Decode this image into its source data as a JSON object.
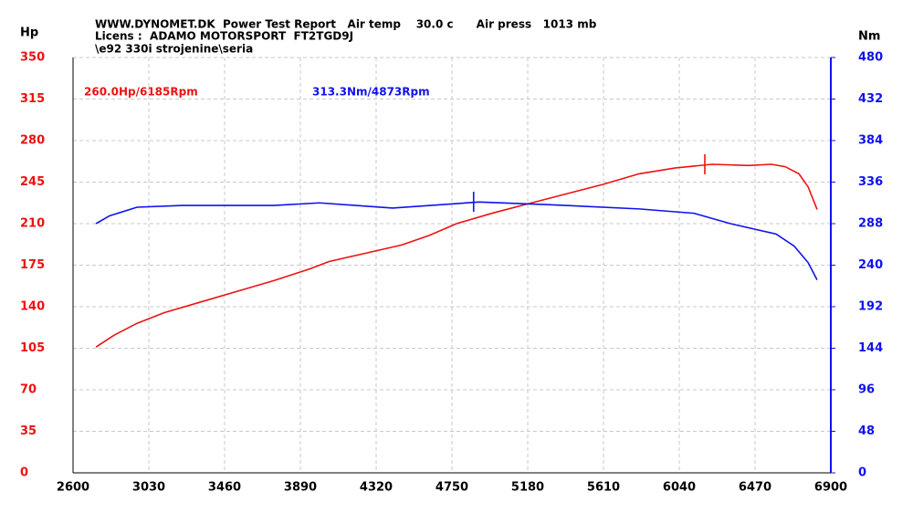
{
  "chart_data": {
    "type": "line",
    "header": [
      "WWW.DYNOMET.DK  Power Test Report   Air temp    30.0 c      Air press   1013 mb",
      "Licens :  ADAMO MOTORSPORT  FT2TGD9J",
      "\\e92 330i strojenine\\seria"
    ],
    "y_label": "Hp",
    "y2_label": "Nm",
    "xlim": [
      2600,
      6900
    ],
    "xticks": [
      2600,
      3030,
      3460,
      3890,
      4320,
      4750,
      5180,
      5610,
      6040,
      6470,
      6900
    ],
    "ylim": [
      0,
      350
    ],
    "yticks": [
      0,
      35,
      70,
      105,
      140,
      175,
      210,
      245,
      280,
      315,
      350
    ],
    "y2lim": [
      0,
      480
    ],
    "y2ticks": [
      0,
      48,
      96,
      144,
      192,
      240,
      288,
      336,
      384,
      432,
      480
    ],
    "grid": true,
    "series": [
      {
        "color": "#ee1111",
        "x": [
          2730,
          2833,
          2963,
          3118,
          3325,
          3532,
          3740,
          3947,
          4051,
          4258,
          4465,
          4620,
          4776,
          4983,
          5190,
          5397,
          5605,
          5812,
          6019,
          6226,
          6433,
          6563,
          6641,
          6719,
          6771,
          6822
        ],
        "values": [
          106,
          116,
          126,
          135,
          144,
          153,
          162,
          172,
          178,
          185,
          192,
          200,
          210,
          219,
          227,
          235,
          243,
          252,
          257,
          260,
          259,
          260,
          258,
          252,
          241,
          222
        ]
      },
      {
        "color": "#1111ee",
        "axis": "y2",
        "x": [
          2730,
          2807,
          2963,
          3222,
          3740,
          3999,
          4413,
          4905,
          5294,
          5812,
          6123,
          6330,
          6589,
          6692,
          6771,
          6822
        ],
        "values": [
          288,
          297,
          307,
          309,
          309,
          312,
          306,
          313,
          310,
          305,
          300,
          288,
          276,
          262,
          243,
          223
        ]
      }
    ],
    "annotations": [
      {
        "text": "260.0Hp/6185Rpm",
        "color": "#ee1111",
        "x": 6185,
        "y": 260.0
      },
      {
        "text": "313.3Nm/4873Rpm",
        "color": "#1111ee",
        "x": 4873,
        "y": 313.3,
        "axis": "y2"
      }
    ]
  }
}
